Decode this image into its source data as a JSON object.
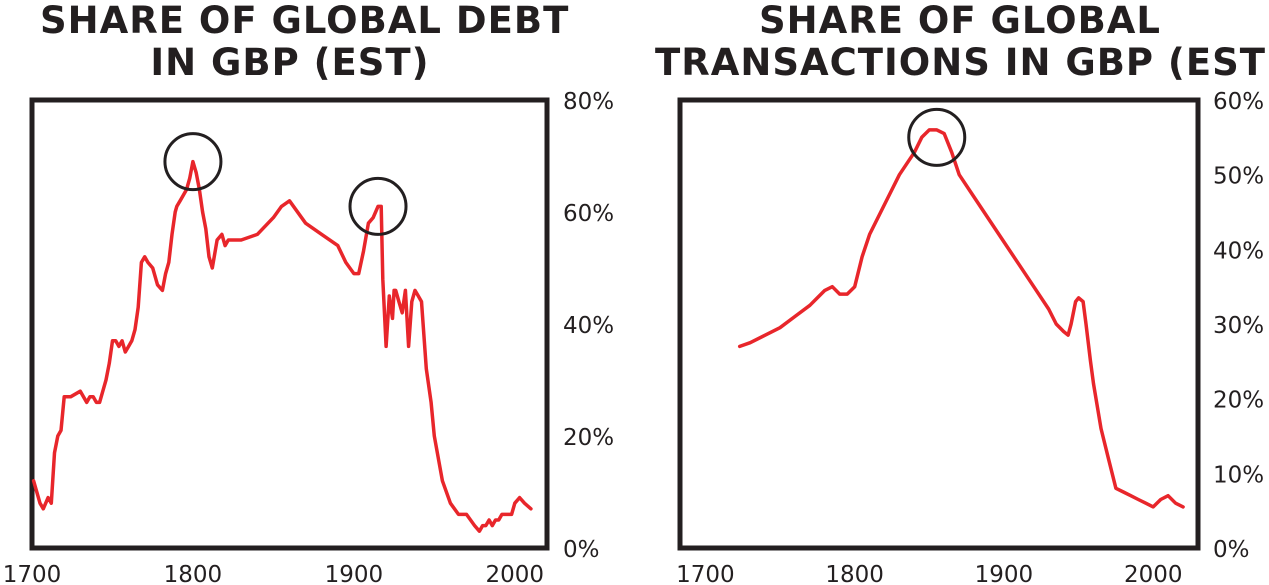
{
  "colors": {
    "line": "#e8262b",
    "frame": "#231f20",
    "circle": "#231f20"
  },
  "chart_data": [
    {
      "type": "line",
      "title": "SHARE OF GLOBAL DEBT IN GBP (EST)",
      "title_lines": [
        "SHARE OF GLOBAL DEBT",
        "IN GBP (EST)"
      ],
      "xlim": [
        1700,
        2020
      ],
      "ylim": [
        0,
        80
      ],
      "x_ticks": [
        1700,
        1800,
        1900,
        2000
      ],
      "x_tick_labels": [
        "1700",
        "1800",
        "1900",
        "2000"
      ],
      "y_ticks": [
        0,
        20,
        40,
        60,
        80
      ],
      "y_tick_labels": [
        "0%",
        "20%",
        "40%",
        "60%",
        "80%"
      ],
      "y_axis_side": "right",
      "highlight_circles": [
        {
          "x": 1800,
          "y": 69
        },
        {
          "x": 1915,
          "y": 61
        }
      ],
      "series": [
        {
          "x": [
            1701,
            1703,
            1705,
            1707,
            1710,
            1712,
            1714,
            1716,
            1718,
            1720,
            1724,
            1730,
            1734,
            1736,
            1738,
            1740,
            1742,
            1744,
            1746,
            1748,
            1750,
            1752,
            1754,
            1756,
            1758,
            1760,
            1762,
            1764,
            1766,
            1768,
            1770,
            1772,
            1775,
            1778,
            1781,
            1783,
            1785,
            1787,
            1789,
            1790,
            1792,
            1794,
            1796,
            1798,
            1800,
            1802,
            1804,
            1806,
            1808,
            1810,
            1812,
            1815,
            1818,
            1820,
            1822,
            1825,
            1830,
            1840,
            1850,
            1855,
            1860,
            1870,
            1880,
            1890,
            1895,
            1900,
            1903,
            1906,
            1909,
            1912,
            1915,
            1917,
            1918,
            1920,
            1922,
            1924,
            1925,
            1926,
            1928,
            1930,
            1932,
            1934,
            1936,
            1938,
            1940,
            1942,
            1945,
            1948,
            1950,
            1955,
            1960,
            1965,
            1970,
            1975,
            1978,
            1980,
            1982,
            1984,
            1986,
            1988,
            1990,
            1992,
            1995,
            1998,
            2000,
            2003,
            2006,
            2010
          ],
          "y": [
            12,
            10,
            8,
            7,
            9,
            8,
            17,
            20,
            21,
            27,
            27,
            28,
            26,
            27,
            27,
            26,
            26,
            28,
            30,
            33,
            37,
            37,
            36,
            37,
            35,
            36,
            37,
            39,
            43,
            51,
            52,
            51,
            50,
            47,
            46,
            49,
            51,
            56,
            60,
            61,
            62,
            63,
            64,
            66,
            69,
            67,
            64,
            60,
            57,
            52,
            50,
            55,
            56,
            54,
            55,
            55,
            55,
            56,
            59,
            61,
            62,
            58,
            56,
            54,
            51,
            49,
            49,
            53,
            58,
            59,
            61,
            61,
            48,
            36,
            45,
            41,
            46,
            46,
            44,
            42,
            46,
            36,
            44,
            46,
            45,
            44,
            32,
            26,
            20,
            12,
            8,
            6,
            6,
            4,
            3,
            4,
            4,
            5,
            4,
            5,
            5,
            6,
            6,
            6,
            8,
            9,
            8,
            7
          ]
        }
      ]
    },
    {
      "type": "line",
      "title": "SHARE OF GLOBAL TRANSACTIONS IN GBP (EST)",
      "title_lines": [
        "SHARE OF GLOBAL",
        "TRANSACTIONS IN GBP (EST)"
      ],
      "xlim": [
        1683,
        2030
      ],
      "ylim": [
        0,
        60
      ],
      "x_ticks": [
        1700,
        1800,
        1900,
        2000
      ],
      "x_tick_labels": [
        "1700",
        "1800",
        "1900",
        "2000"
      ],
      "y_ticks": [
        0,
        10,
        20,
        30,
        40,
        50,
        60
      ],
      "y_tick_labels": [
        "0%",
        "10%",
        "20%",
        "30%",
        "40%",
        "50%",
        "60%"
      ],
      "y_axis_side": "right",
      "highlight_circles": [
        {
          "x": 1855,
          "y": 55
        }
      ],
      "series": [
        {
          "x": [
            1723,
            1730,
            1740,
            1750,
            1760,
            1770,
            1775,
            1780,
            1785,
            1790,
            1795,
            1800,
            1805,
            1810,
            1820,
            1830,
            1840,
            1845,
            1850,
            1855,
            1860,
            1865,
            1870,
            1880,
            1890,
            1900,
            1910,
            1920,
            1930,
            1935,
            1940,
            1943,
            1945,
            1948,
            1950,
            1953,
            1955,
            1958,
            1960,
            1965,
            1970,
            1975,
            1980,
            1985,
            1990,
            1995,
            2000,
            2005,
            2010,
            2015,
            2020
          ],
          "y": [
            27,
            27.5,
            28.5,
            29.5,
            31,
            32.5,
            33.5,
            34.5,
            35,
            34,
            34,
            35,
            39,
            42,
            46,
            50,
            53,
            55,
            56,
            56,
            55.5,
            53,
            50,
            47,
            44,
            41,
            38,
            35,
            32,
            30,
            29,
            28.5,
            30,
            33,
            33.5,
            33,
            30,
            25,
            22,
            16,
            12,
            8,
            7.5,
            7,
            6.5,
            6,
            5.5,
            6.5,
            7,
            6,
            5.5
          ]
        }
      ]
    }
  ]
}
